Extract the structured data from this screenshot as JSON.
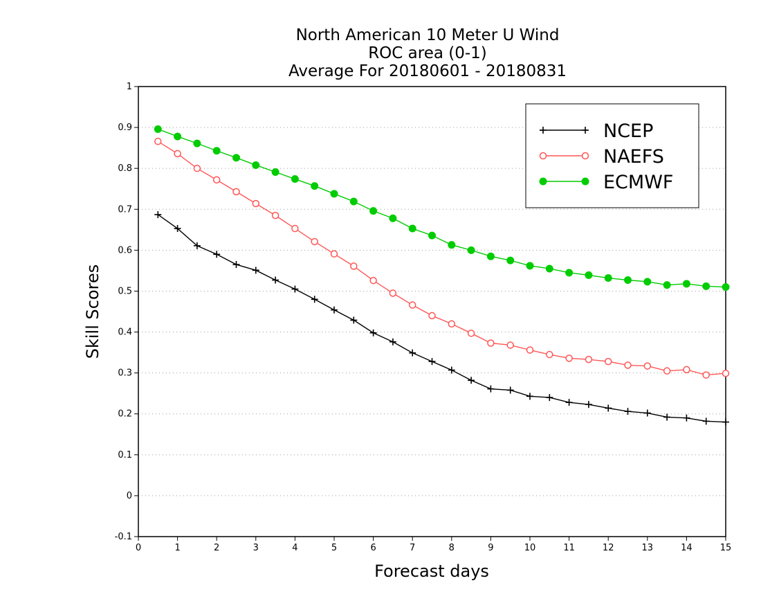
{
  "chart_data": {
    "type": "line",
    "title_lines": [
      "North American 10 Meter U Wind",
      "ROC area (0-1)",
      "Average For 20180601 - 20180831"
    ],
    "xlabel": "Forecast days",
    "ylabel": "Skill Scores",
    "xlim": [
      0,
      15
    ],
    "ylim": [
      -0.1,
      1
    ],
    "x_ticks": [
      "0",
      "1",
      "2",
      "3",
      "4",
      "5",
      "6",
      "7",
      "8",
      "9",
      "10",
      "11",
      "12",
      "13",
      "14",
      "15"
    ],
    "y_ticks": [
      "1",
      "0.9",
      "0.8",
      "0.7",
      "0.6",
      "0.5",
      "0.4",
      "0.3",
      "0.2",
      "0.1",
      "0",
      "-0.1"
    ],
    "grid": "horizontal dotted",
    "legend_position": "top-right",
    "x": [
      0.5,
      1,
      1.5,
      2,
      2.5,
      3,
      3.5,
      4,
      4.5,
      5,
      5.5,
      6,
      6.5,
      7,
      7.5,
      8,
      8.5,
      9,
      9.5,
      10,
      10.5,
      11,
      11.5,
      12,
      12.5,
      13,
      13.5,
      14,
      14.5,
      15
    ],
    "series": [
      {
        "name": "NCEP",
        "color": "#000000",
        "marker": "plus",
        "values": [
          0.687,
          0.653,
          0.611,
          0.59,
          0.565,
          0.551,
          0.527,
          0.505,
          0.48,
          0.454,
          0.429,
          0.398,
          0.376,
          0.349,
          0.328,
          0.307,
          0.282,
          0.261,
          0.258,
          0.243,
          0.24,
          0.228,
          0.223,
          0.214,
          0.206,
          0.202,
          0.192,
          0.19,
          0.182,
          0.18
        ]
      },
      {
        "name": "NAEFS",
        "color": "#ff5555",
        "marker": "open-circle",
        "values": [
          0.866,
          0.836,
          0.8,
          0.772,
          0.743,
          0.714,
          0.685,
          0.653,
          0.621,
          0.591,
          0.561,
          0.526,
          0.495,
          0.466,
          0.44,
          0.42,
          0.397,
          0.373,
          0.368,
          0.356,
          0.345,
          0.336,
          0.333,
          0.328,
          0.319,
          0.317,
          0.305,
          0.308,
          0.295,
          0.299
        ]
      },
      {
        "name": "ECMWF",
        "color": "#00cc00",
        "marker": "filled-circle",
        "values": [
          0.896,
          0.878,
          0.861,
          0.843,
          0.826,
          0.808,
          0.791,
          0.774,
          0.757,
          0.738,
          0.719,
          0.696,
          0.678,
          0.653,
          0.636,
          0.613,
          0.6,
          0.585,
          0.575,
          0.562,
          0.555,
          0.545,
          0.539,
          0.532,
          0.527,
          0.523,
          0.515,
          0.518,
          0.512,
          0.51
        ]
      }
    ]
  }
}
